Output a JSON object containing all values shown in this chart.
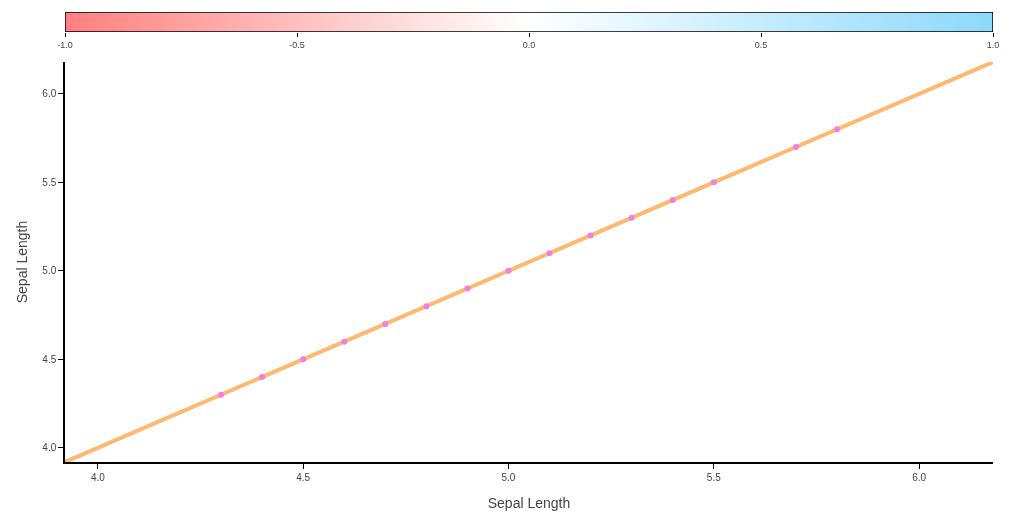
{
  "chart_data": {
    "type": "scatter",
    "xlabel": "Sepal Length",
    "ylabel": "Sepal Length",
    "x": [
      4.3,
      4.4,
      4.5,
      4.6,
      4.7,
      4.8,
      4.9,
      5.0,
      5.1,
      5.2,
      5.3,
      5.4,
      5.5,
      5.7,
      5.8
    ],
    "series": [
      {
        "color": "#f27ee0",
        "marker": "circle",
        "values": [
          4.3,
          4.4,
          4.5,
          4.6,
          4.7,
          4.8,
          4.9,
          5.0,
          5.1,
          5.2,
          5.3,
          5.4,
          5.5,
          5.7,
          5.8
        ]
      },
      {
        "type": "line",
        "color": "#ffb870",
        "line_style": "solid",
        "x": [
          3.92,
          6.18
        ],
        "values": [
          3.92,
          6.18
        ]
      }
    ],
    "xlim": [
      3.92,
      6.18
    ],
    "ylim": [
      3.92,
      6.18
    ],
    "xticks": [
      {
        "value": 4,
        "label": "4.0"
      },
      4.5,
      {
        "value": 5,
        "label": "5.0"
      },
      5.5,
      {
        "value": 6,
        "label": "6.0"
      }
    ],
    "yticks": [
      {
        "value": 4,
        "label": "4.0"
      },
      4.5,
      {
        "value": 5,
        "label": "5.0"
      },
      5.5,
      {
        "value": 6,
        "label": "6.0"
      }
    ],
    "clim": [
      -1,
      1
    ],
    "cticks": [
      {
        "value": -1,
        "label": "-1.0"
      },
      -0.5,
      {
        "value": 0,
        "label": "0.0"
      },
      0.5,
      {
        "value": 1,
        "label": "1.0"
      }
    ],
    "grid": false,
    "legend": false
  }
}
